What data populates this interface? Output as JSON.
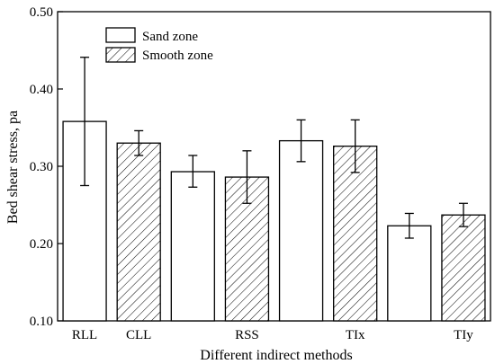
{
  "chart_data": {
    "type": "bar",
    "title": "",
    "xlabel": "Different indirect methods",
    "ylabel": "Bed shear stress, pa",
    "ylim": [
      0.1,
      0.5
    ],
    "yticks": [
      "0.10",
      "0.20",
      "0.30",
      "0.40",
      "0.50"
    ],
    "ytick_values": [
      0.1,
      0.2,
      0.3,
      0.4,
      0.5
    ],
    "grid": false,
    "legend_position": "top-center",
    "bars": [
      {
        "label": "RLL",
        "series": "Sand zone",
        "value": 0.358,
        "err_low": 0.275,
        "err_high": 0.441
      },
      {
        "label": "CLL",
        "series": "Smooth zone",
        "value": 0.33,
        "err_low": 0.314,
        "err_high": 0.346
      },
      {
        "label": "",
        "series": "Sand zone",
        "value": 0.293,
        "err_low": 0.273,
        "err_high": 0.314
      },
      {
        "label": "RSS",
        "series": "Smooth zone",
        "value": 0.286,
        "err_low": 0.252,
        "err_high": 0.32
      },
      {
        "label": "",
        "series": "Sand zone",
        "value": 0.333,
        "err_low": 0.306,
        "err_high": 0.36
      },
      {
        "label": "TIx",
        "series": "Smooth zone",
        "value": 0.326,
        "err_low": 0.292,
        "err_high": 0.36
      },
      {
        "label": "",
        "series": "Sand zone",
        "value": 0.223,
        "err_low": 0.207,
        "err_high": 0.239
      },
      {
        "label": "TIy",
        "series": "Smooth zone",
        "value": 0.237,
        "err_low": 0.222,
        "err_high": 0.252
      }
    ],
    "series": [
      {
        "name": "Sand zone",
        "pattern": "none"
      },
      {
        "name": "Smooth zone",
        "pattern": "hatch"
      }
    ]
  }
}
